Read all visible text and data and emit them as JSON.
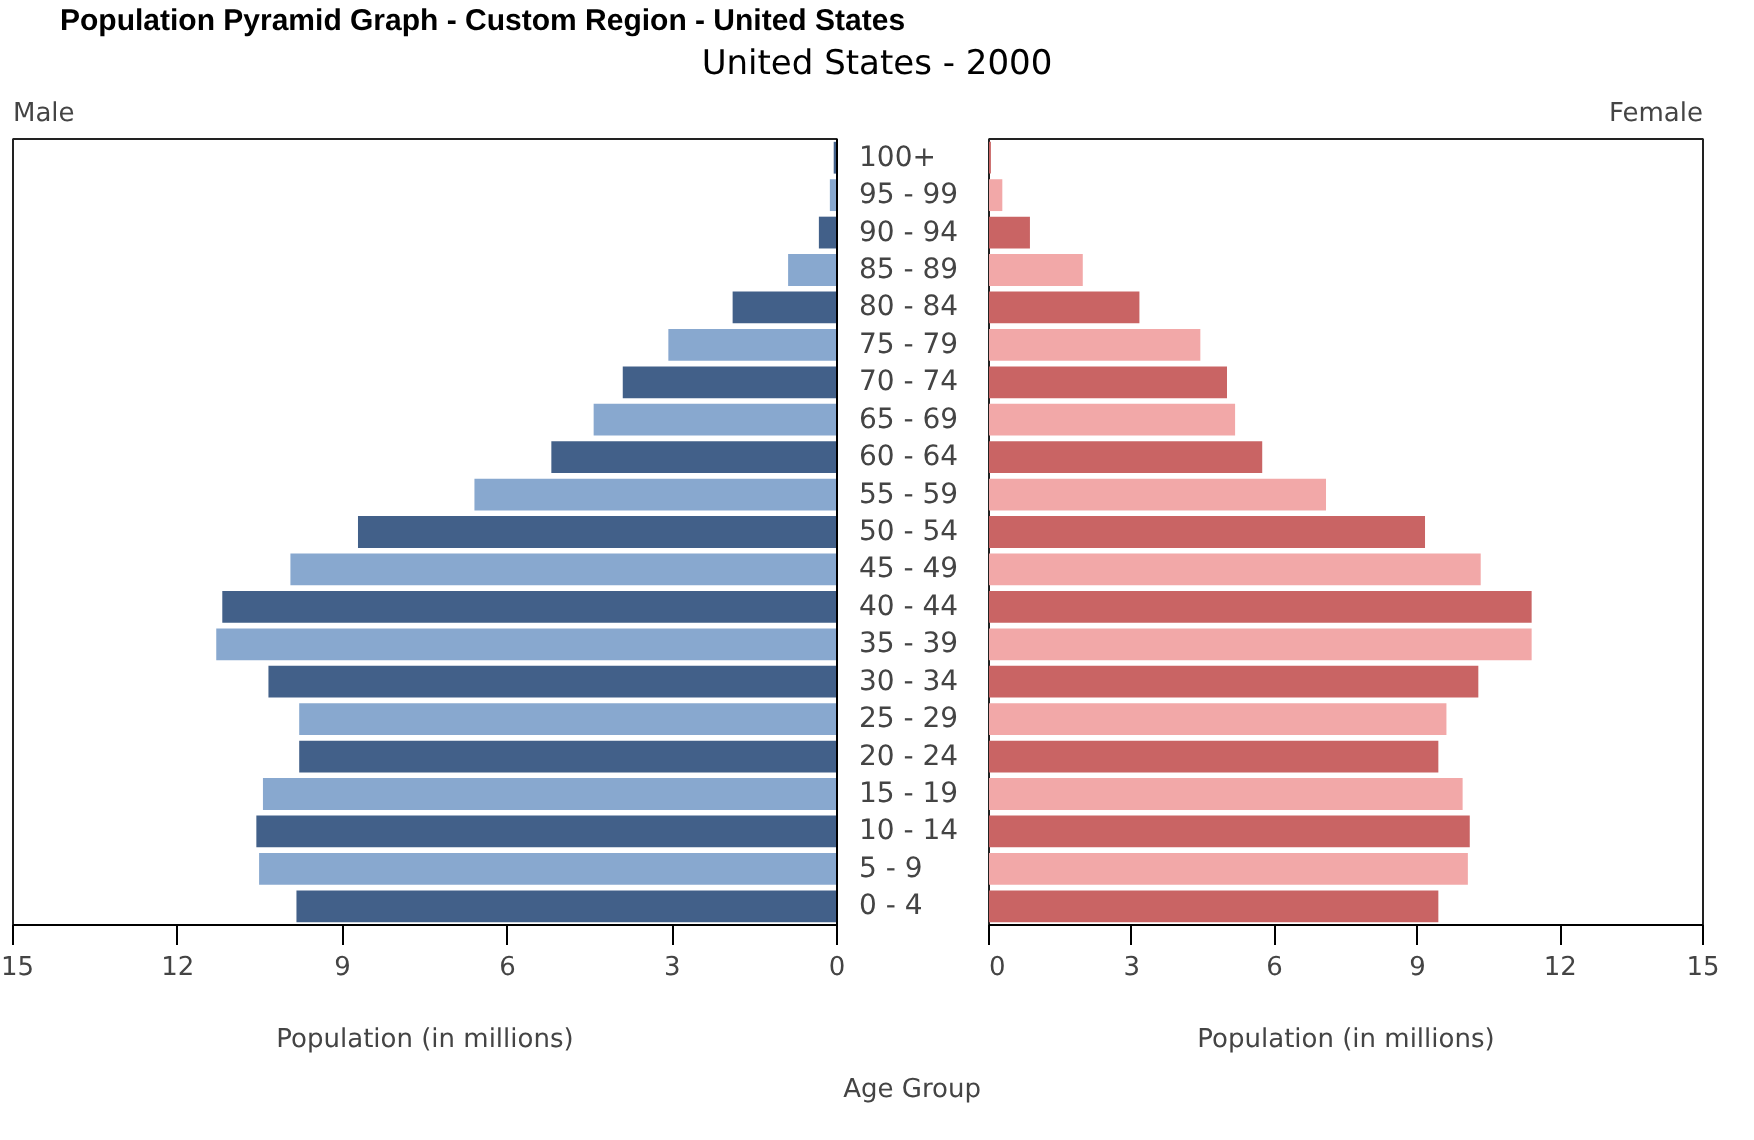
{
  "chart_data": [
    {
      "type": "bar",
      "orientation": "horizontal",
      "title": "Population Pyramid Graph - Custom Region - United States",
      "subtitle": "United States - 2000",
      "annotations": [
        "Male"
      ],
      "xlabel": "Population (in millions)",
      "ylabel": "Age Group",
      "categories": [
        "100+",
        "95 - 99",
        "90 - 94",
        "85 - 89",
        "80 - 84",
        "75 - 79",
        "70 - 74",
        "65 - 69",
        "60 - 64",
        "55 - 59",
        "50 - 54",
        "45 - 49",
        "40 - 44",
        "35 - 39",
        "30 - 34",
        "25 - 29",
        "20 - 24",
        "15 - 19",
        "10 - 14",
        "5 - 9",
        "0 - 4"
      ],
      "values": [
        0.06,
        0.13,
        0.33,
        0.89,
        1.9,
        3.07,
        3.9,
        4.43,
        5.2,
        6.6,
        8.72,
        9.95,
        11.19,
        11.3,
        10.35,
        9.79,
        9.79,
        10.45,
        10.57,
        10.52,
        9.84
      ],
      "colors": [
        "#426089",
        "#88a8cf",
        "#426089",
        "#88a8cf",
        "#426089",
        "#88a8cf",
        "#426089",
        "#88a8cf",
        "#426089",
        "#88a8cf",
        "#426089",
        "#88a8cf",
        "#426089",
        "#88a8cf",
        "#426089",
        "#88a8cf",
        "#426089",
        "#88a8cf",
        "#426089",
        "#88a8cf",
        "#426089"
      ],
      "xlim": [
        15,
        0
      ],
      "xticks": [
        15,
        12,
        9,
        6,
        3,
        0
      ]
    },
    {
      "type": "bar",
      "orientation": "horizontal",
      "annotations": [
        "Female"
      ],
      "xlabel": "Population (in millions)",
      "tick_labels": "x",
      "categories": [
        null,
        null,
        null,
        null,
        null,
        null,
        null,
        null,
        null,
        null,
        null,
        null,
        null,
        null,
        null,
        null,
        null,
        null,
        null,
        null,
        null
      ],
      "values": [
        0.04,
        0.28,
        0.86,
        1.97,
        3.16,
        4.44,
        5.0,
        5.17,
        5.74,
        7.08,
        9.16,
        10.33,
        11.4,
        11.4,
        10.28,
        9.61,
        9.44,
        9.95,
        10.1,
        10.06,
        9.44
      ],
      "colors": [
        "#c96464",
        "#f2a8a8",
        "#c96464",
        "#f2a8a8",
        "#c96464",
        "#f2a8a8",
        "#c96464",
        "#f2a8a8",
        "#c96464",
        "#f2a8a8",
        "#c96464",
        "#f2a8a8",
        "#c96464",
        "#f2a8a8",
        "#c96464",
        "#f2a8a8",
        "#c96464",
        "#f2a8a8",
        "#c96464",
        "#f2a8a8",
        "#c96464"
      ],
      "xlim": [
        0,
        15
      ],
      "xticks": [
        0,
        3,
        6,
        9,
        12,
        15
      ]
    }
  ]
}
